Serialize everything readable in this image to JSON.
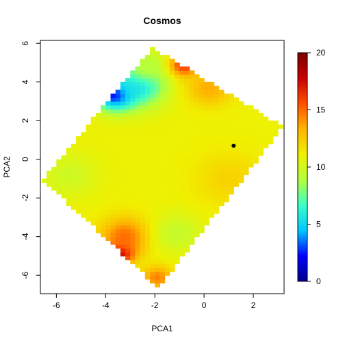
{
  "chart_data": {
    "type": "heatmap",
    "title": "Cosmos",
    "xlabel": "PCA1",
    "ylabel": "PCA2",
    "xlim": [
      -6.65,
      3.25
    ],
    "ylim": [
      -6.95,
      6.15
    ],
    "x_ticks": [
      -6,
      -4,
      -2,
      0,
      2
    ],
    "y_ticks": [
      -6,
      -4,
      -2,
      0,
      2,
      4,
      6
    ],
    "x_tick_labels": [
      "-6",
      "-4",
      "-2",
      "0",
      "2"
    ],
    "y_tick_labels": [
      "-6",
      "-4",
      "-2",
      "0",
      "2",
      "4",
      "6"
    ],
    "grid": false,
    "value_range": [
      0,
      20
    ],
    "colorbar": {
      "ticks": [
        0,
        5,
        10,
        15,
        20
      ],
      "tick_labels": [
        "0",
        "5",
        "10",
        "15",
        "20"
      ],
      "placement": "right",
      "colors": [
        "#00008b",
        "#0000ff",
        "#00c8ff",
        "#3cffc8",
        "#b4ff3c",
        "#f0f000",
        "#ffb400",
        "#ff5000",
        "#c80000",
        "#7a0000"
      ]
    },
    "grid_cell_size": 0.2,
    "domain_corners_pca": [
      [
        -2.1,
        5.8
      ],
      [
        3.2,
        1.7
      ],
      [
        -1.85,
        -6.65
      ],
      [
        -6.55,
        -1.05
      ]
    ],
    "base_value": 11,
    "value_features": [
      {
        "x": -3.6,
        "y": 3.4,
        "v": 1,
        "s": 0.8
      },
      {
        "x": -2.7,
        "y": 3.9,
        "v": 5,
        "s": 1.1
      },
      {
        "x": -2.3,
        "y": 4.8,
        "v": 9,
        "s": 0.8
      },
      {
        "x": -0.8,
        "y": 4.9,
        "v": 16.5,
        "s": 0.6
      },
      {
        "x": 0.2,
        "y": 3.7,
        "v": 13.5,
        "s": 0.9
      },
      {
        "x": -3.4,
        "y": -4.8,
        "v": 19.5,
        "s": 0.55
      },
      {
        "x": -3.2,
        "y": -4.0,
        "v": 15,
        "s": 1.0
      },
      {
        "x": -1.9,
        "y": -6.1,
        "v": 14.5,
        "s": 0.6
      },
      {
        "x": -1.1,
        "y": -3.8,
        "v": 9.5,
        "s": 1.0
      },
      {
        "x": 1.0,
        "y": -1.0,
        "v": 12.2,
        "s": 1.4
      },
      {
        "x": -5.5,
        "y": -0.8,
        "v": 9.8,
        "s": 1.1
      }
    ],
    "points": [
      {
        "x": 1.2,
        "y": 0.7
      }
    ]
  }
}
